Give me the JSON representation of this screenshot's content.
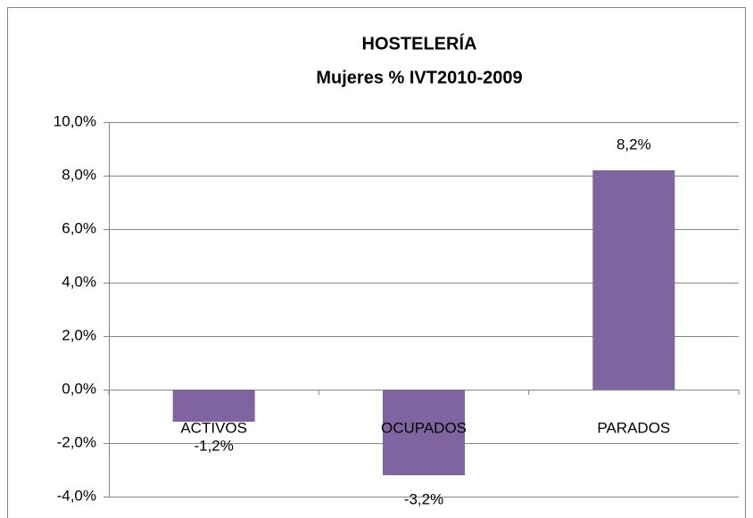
{
  "chart_data": {
    "type": "bar",
    "title": "HOSTELERÍA",
    "subtitle": "Mujeres % IVT2010-2009",
    "categories": [
      "ACTIVOS",
      "OCUPADOS",
      "PARADOS"
    ],
    "values": [
      -1.2,
      -3.2,
      8.2
    ],
    "value_labels": [
      "-1,2%",
      "-3,2%",
      "8,2%"
    ],
    "color": "#8064a2",
    "ylim": [
      -4,
      10
    ],
    "yticks": [
      {
        "value": -4,
        "label": "-4,0%"
      },
      {
        "value": -2,
        "label": "-2,0%"
      },
      {
        "value": 0,
        "label": "0,0%"
      },
      {
        "value": 2,
        "label": "2,0%"
      },
      {
        "value": 4,
        "label": "4,0%"
      },
      {
        "value": 6,
        "label": "6,0%"
      },
      {
        "value": 8,
        "label": "8,0%"
      },
      {
        "value": 10,
        "label": "10,0%"
      }
    ],
    "grid": true
  }
}
